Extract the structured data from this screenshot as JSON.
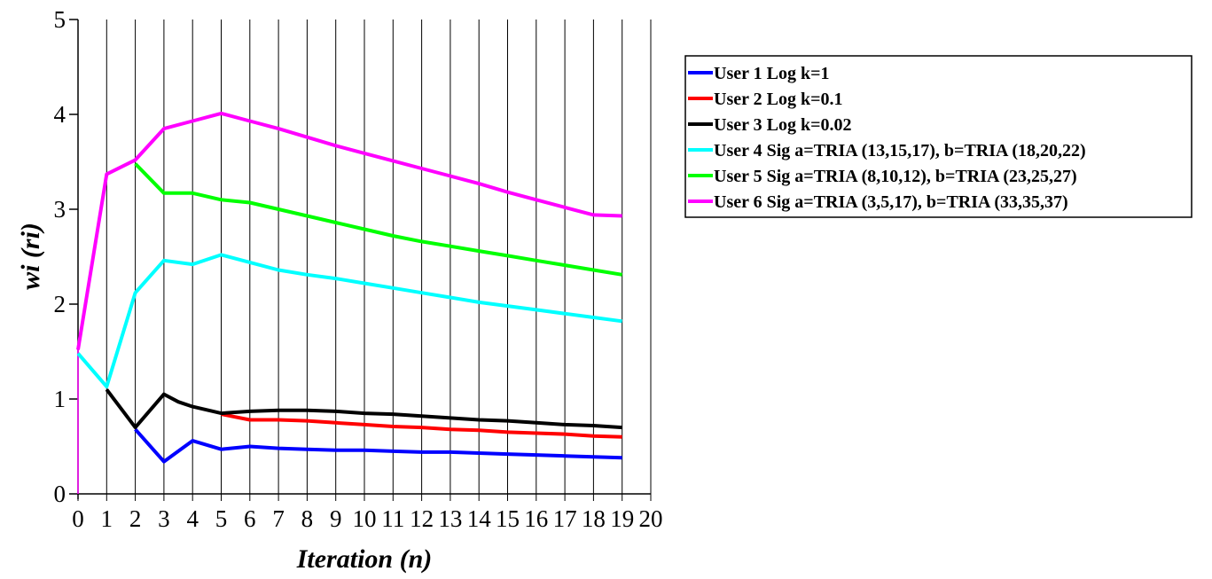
{
  "chart_data": {
    "type": "line",
    "title": "",
    "xlabel": "Iteration (n)",
    "ylabel": "wi (ri)",
    "xlim": [
      0,
      20
    ],
    "ylim": [
      0,
      5
    ],
    "xticks": [
      0,
      1,
      2,
      3,
      4,
      5,
      6,
      7,
      8,
      9,
      10,
      11,
      12,
      13,
      14,
      15,
      16,
      17,
      18,
      19,
      20
    ],
    "yticks": [
      0,
      1,
      2,
      3,
      4,
      5
    ],
    "grid": "vertical",
    "legend_position": "right",
    "series": [
      {
        "name": "User 1 Log k=1",
        "color": "#0000ff",
        "points": [
          [
            2,
            0.68
          ],
          [
            3,
            0.34
          ],
          [
            4,
            0.56
          ],
          [
            5,
            0.47
          ],
          [
            6,
            0.5
          ],
          [
            7,
            0.48
          ],
          [
            8,
            0.47
          ],
          [
            9,
            0.46
          ],
          [
            10,
            0.46
          ],
          [
            11,
            0.45
          ],
          [
            12,
            0.44
          ],
          [
            13,
            0.44
          ],
          [
            14,
            0.43
          ],
          [
            15,
            0.42
          ],
          [
            16,
            0.41
          ],
          [
            17,
            0.4
          ],
          [
            18,
            0.39
          ],
          [
            19,
            0.38
          ]
        ]
      },
      {
        "name": "User 2 Log k=0.1",
        "color": "#ff0000",
        "points": [
          [
            5,
            0.84
          ],
          [
            6,
            0.78
          ],
          [
            7,
            0.78
          ],
          [
            8,
            0.77
          ],
          [
            9,
            0.75
          ],
          [
            10,
            0.73
          ],
          [
            11,
            0.71
          ],
          [
            12,
            0.7
          ],
          [
            13,
            0.68
          ],
          [
            14,
            0.67
          ],
          [
            15,
            0.65
          ],
          [
            16,
            0.64
          ],
          [
            17,
            0.63
          ],
          [
            18,
            0.61
          ],
          [
            19,
            0.6
          ]
        ]
      },
      {
        "name": "User 3 Log k=0.02",
        "color": "#000000",
        "points": [
          [
            1,
            1.1
          ],
          [
            2,
            0.7
          ],
          [
            3,
            1.05
          ],
          [
            3.5,
            0.97
          ],
          [
            4,
            0.92
          ],
          [
            5,
            0.85
          ],
          [
            6,
            0.87
          ],
          [
            7,
            0.88
          ],
          [
            8,
            0.88
          ],
          [
            9,
            0.87
          ],
          [
            10,
            0.85
          ],
          [
            11,
            0.84
          ],
          [
            12,
            0.82
          ],
          [
            13,
            0.8
          ],
          [
            14,
            0.78
          ],
          [
            15,
            0.77
          ],
          [
            16,
            0.75
          ],
          [
            17,
            0.73
          ],
          [
            18,
            0.72
          ],
          [
            19,
            0.7
          ]
        ]
      },
      {
        "name": "User 4 Sig a=TRIA (13,15,17), b=TRIA (18,20,22)",
        "color": "#00ffff",
        "points": [
          [
            0,
            1.48
          ],
          [
            1,
            1.13
          ],
          [
            2,
            2.12
          ],
          [
            3,
            2.46
          ],
          [
            4,
            2.42
          ],
          [
            5,
            2.52
          ],
          [
            6,
            2.44
          ],
          [
            7,
            2.36
          ],
          [
            8,
            2.31
          ],
          [
            9,
            2.27
          ],
          [
            10,
            2.22
          ],
          [
            11,
            2.17
          ],
          [
            12,
            2.12
          ],
          [
            13,
            2.07
          ],
          [
            14,
            2.02
          ],
          [
            15,
            1.98
          ],
          [
            16,
            1.94
          ],
          [
            17,
            1.9
          ],
          [
            18,
            1.86
          ],
          [
            19,
            1.82
          ]
        ]
      },
      {
        "name": "User 5 Sig a=TRIA (8,10,12), b=TRIA (23,25,27)",
        "color": "#00ff00",
        "points": [
          [
            2,
            3.48
          ],
          [
            3,
            3.17
          ],
          [
            4,
            3.17
          ],
          [
            5,
            3.1
          ],
          [
            6,
            3.07
          ],
          [
            7,
            3.0
          ],
          [
            8,
            2.93
          ],
          [
            9,
            2.86
          ],
          [
            10,
            2.79
          ],
          [
            11,
            2.72
          ],
          [
            12,
            2.66
          ],
          [
            13,
            2.61
          ],
          [
            14,
            2.56
          ],
          [
            15,
            2.51
          ],
          [
            16,
            2.46
          ],
          [
            17,
            2.41
          ],
          [
            18,
            2.36
          ],
          [
            19,
            2.31
          ]
        ]
      },
      {
        "name": "User 6 Sig a=TRIA (3,5,17), b=TRIA (33,35,37)",
        "color": "#ff00ff",
        "points": [
          [
            0,
            1.52
          ],
          [
            1,
            3.37
          ],
          [
            2,
            3.52
          ],
          [
            3,
            3.85
          ],
          [
            4,
            3.93
          ],
          [
            5,
            4.01
          ],
          [
            6,
            3.93
          ],
          [
            7,
            3.85
          ],
          [
            8,
            3.76
          ],
          [
            9,
            3.67
          ],
          [
            10,
            3.59
          ],
          [
            11,
            3.51
          ],
          [
            12,
            3.43
          ],
          [
            13,
            3.35
          ],
          [
            14,
            3.27
          ],
          [
            15,
            3.18
          ],
          [
            16,
            3.1
          ],
          [
            17,
            3.02
          ],
          [
            18,
            2.94
          ],
          [
            19,
            2.93
          ]
        ]
      }
    ],
    "annotations": [
      {
        "type": "vertical-segment",
        "color": "#ff00ff",
        "x": 0,
        "y_from": 0,
        "y_to": 1.52
      }
    ]
  }
}
